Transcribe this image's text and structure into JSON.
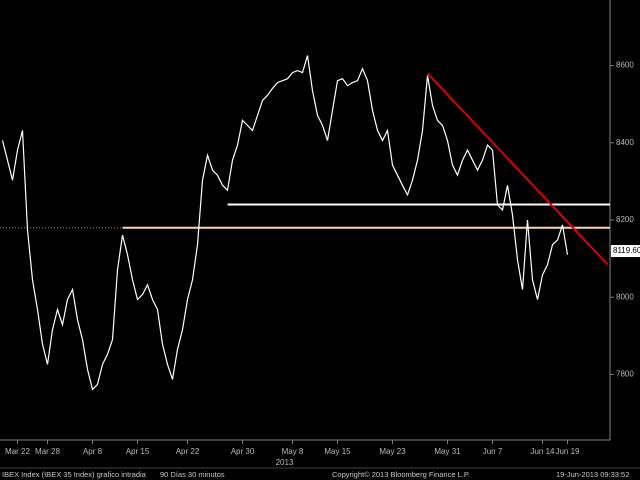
{
  "chart_data": {
    "type": "line",
    "categories": [
      null,
      null,
      null,
      "Mar 22",
      null,
      null,
      null,
      null,
      null,
      "Mar 28",
      null,
      null,
      null,
      null,
      null,
      null,
      null,
      null,
      "Apr 8",
      null,
      null,
      null,
      null,
      null,
      null,
      null,
      null,
      "Apr 15",
      null,
      null,
      null,
      null,
      null,
      null,
      null,
      null,
      null,
      "Apr 22",
      null,
      null,
      null,
      null,
      null,
      null,
      null,
      null,
      null,
      null,
      "Apr 30",
      null,
      null,
      null,
      null,
      null,
      null,
      null,
      null,
      null,
      "May 8",
      null,
      null,
      null,
      null,
      null,
      null,
      null,
      null,
      "May 15",
      null,
      null,
      null,
      null,
      null,
      null,
      null,
      null,
      null,
      null,
      "May 23",
      null,
      null,
      null,
      null,
      null,
      null,
      null,
      null,
      null,
      null,
      "May 31",
      null,
      null,
      null,
      null,
      null,
      null,
      null,
      null,
      "Jun 7",
      null,
      null,
      null,
      null,
      null,
      null,
      null,
      null,
      null,
      "Jun 14",
      null,
      null,
      null,
      null,
      "Jun 19",
      null,
      null,
      null,
      null,
      null,
      null,
      null,
      null
    ],
    "series": [
      {
        "color": "#ffffff",
        "values": [
          8406,
          8355,
          8303,
          8381,
          8432,
          8174,
          8045,
          7968,
          7878,
          7826,
          7916,
          7968,
          7929,
          7994,
          8020,
          7942,
          7890,
          7813,
          7761,
          7774,
          7826,
          7852,
          7890,
          8071,
          8161,
          8110,
          8045,
          7994,
          8007,
          8032,
          7994,
          7968,
          7878,
          7826,
          7787,
          7865,
          7916,
          7994,
          8045,
          8136,
          8303,
          8368,
          8329,
          8316,
          8290,
          8277,
          8355,
          8394,
          8458,
          8445,
          8432,
          8471,
          8510,
          8523,
          8541,
          8556,
          8561,
          8566,
          8582,
          8587,
          8582,
          8626,
          8535,
          8471,
          8445,
          8406,
          8484,
          8561,
          8566,
          8548,
          8556,
          8561,
          8592,
          8561,
          8484,
          8432,
          8406,
          8432,
          8342,
          8316,
          8290,
          8265,
          8303,
          8355,
          8432,
          8574,
          8497,
          8458,
          8445,
          8406,
          8342,
          8316,
          8355,
          8381,
          8355,
          8329,
          8355,
          8394,
          8381,
          8239,
          8226,
          8290,
          8213,
          8097,
          8020,
          8200,
          8045,
          7994,
          8058,
          8084,
          8136,
          8148,
          8187,
          8110,
          null,
          null,
          null,
          null,
          null,
          null,
          null,
          null
        ]
      }
    ],
    "ylim": [
      7630,
      8770
    ],
    "yticks": [
      7800,
      8000,
      8200,
      8400,
      8600
    ],
    "year_label": "2013",
    "hlines": [
      {
        "value": 8240,
        "from": 45,
        "color": "#ffffff",
        "dotted_left": false
      },
      {
        "value": 8180,
        "from": 24,
        "color": "#f5d9a8",
        "dotted_left": true
      }
    ],
    "trendline": {
      "from": {
        "index": 85,
        "value": 8580
      },
      "to": {
        "index": 121,
        "value": 8085
      },
      "color": "#e00000"
    },
    "last_price": {
      "value": 8119.6,
      "label": "8119.60"
    },
    "footer": [
      "IBEX Index (IBEX 35 Index) grafico intradia",
      "90 Días 30 minutos",
      "Copyright© 2013 Bloomberg Finance L.P.",
      "19-Jun-2013 09:33:52"
    ]
  }
}
